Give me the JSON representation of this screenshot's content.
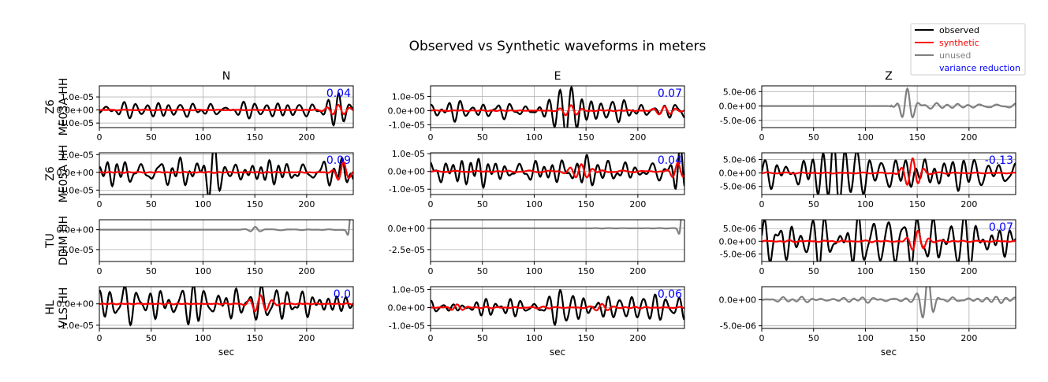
{
  "title": "Observed vs Synthetic waveforms in meters",
  "columns": [
    "N",
    "E",
    "Z"
  ],
  "xlabel": "sec",
  "legend": {
    "placement": "top-right",
    "entries": [
      {
        "label": "observed",
        "color": "#000000",
        "kind": "line"
      },
      {
        "label": "synthetic",
        "color": "#ff0000",
        "kind": "line"
      },
      {
        "label": "unused",
        "color": "#808080",
        "kind": "line"
      },
      {
        "label": "variance reduction",
        "color": "#0000ff",
        "kind": "text"
      }
    ]
  },
  "colors": {
    "observed": "#000000",
    "synthetic": "#ff0000",
    "unused": "#808080",
    "vr": "#0000ff",
    "grid": "#b0b0b0"
  },
  "chart_data": {
    "type": "line",
    "xlim": [
      0,
      245
    ],
    "xticks": [
      0,
      50,
      100,
      150,
      200
    ],
    "xtick_labels": [
      "0",
      "50",
      "100",
      "150",
      "200"
    ],
    "rows": [
      {
        "label": [
          "Z6",
          "ME03A HH"
        ],
        "panels": [
          {
            "used": true,
            "vr": "0.04",
            "ylim": [
              -1.35e-05,
              1.85e-05
            ],
            "yticks": [
              1e-05,
              0,
              -1e-05
            ],
            "ytick_labels": [
              "1.0e-05",
              "0.0e+00",
              "-1.0e-05"
            ],
            "obs": {
              "seed": 11,
              "amp": 5e-06,
              "start": 0,
              "burst": [
                [
                  230,
                  10,
                  1.4e-05
                ]
              ]
            },
            "syn": {
              "seed": 12,
              "amp": 2e-07,
              "start": 0,
              "burst": [
                [
                  230,
                  12,
                  4e-06
                ]
              ]
            }
          },
          {
            "used": true,
            "vr": "0.07",
            "ylim": [
              -1.2e-05,
              1.75e-05
            ],
            "yticks": [
              1e-05,
              0,
              -1e-05
            ],
            "ytick_labels": [
              "1.0e-05",
              "0.0e+00",
              "-1.0e-05"
            ],
            "obs": {
              "seed": 21,
              "amp": 6e-06,
              "start": 0,
              "burst": [
                [
                  135,
                  12,
                  1.5e-05
                ]
              ]
            },
            "syn": {
              "seed": 22,
              "amp": 3e-07,
              "start": 0,
              "burst": [
                [
                  135,
                  10,
                  4e-06
                ],
                [
                  225,
                  12,
                  3e-06
                ]
              ]
            }
          },
          {
            "used": false,
            "vr": "",
            "ylim": [
              -7.5e-06,
              7e-06
            ],
            "yticks": [
              5e-06,
              0,
              -5e-06
            ],
            "ytick_labels": [
              "5.0e-06",
              "0.0e+00",
              "-5.0e-06"
            ],
            "obs": {
              "seed": 31,
              "amp": 6e-07,
              "start": 125,
              "burst": [
                [
                  140,
                  8,
                  6.5e-06
                ]
              ]
            }
          }
        ]
      },
      {
        "label": [
          "Z6",
          "ME05A HH"
        ],
        "panels": [
          {
            "used": true,
            "vr": "0.09",
            "ylim": [
              -1.25e-05,
              1.1e-05
            ],
            "yticks": [
              1e-05,
              0,
              -1e-05
            ],
            "ytick_labels": [
              "1.0e-05",
              "0.0e+00",
              "-1.0e-05"
            ],
            "obs": {
              "seed": 41,
              "amp": 5.5e-06,
              "start": 0,
              "burst": [
                [
                  110,
                  12,
                  1.1e-05
                ]
              ]
            },
            "syn": {
              "seed": 42,
              "amp": 2e-07,
              "start": 0,
              "burst": [
                [
                  235,
                  8,
                  6e-06
                ]
              ]
            }
          },
          {
            "used": true,
            "vr": "0.04",
            "ylim": [
              -1.3e-05,
              1.05e-05
            ],
            "yticks": [
              1e-05,
              0,
              -1e-05
            ],
            "ytick_labels": [
              "1.0e-05",
              "0.0e+00",
              "-1.0e-05"
            ],
            "obs": {
              "seed": 51,
              "amp": 5e-06,
              "start": 0,
              "burst": [
                [
                  150,
                  12,
                  1e-05
                ],
                [
                  240,
                  6,
                  1.2e-05
                ]
              ]
            },
            "syn": {
              "seed": 52,
              "amp": 3e-07,
              "start": 0,
              "burst": [
                [
                  145,
                  12,
                  4e-06
                ],
                [
                  238,
                  8,
                  5e-06
                ]
              ]
            }
          },
          {
            "used": true,
            "vr": "-0.13",
            "ylim": [
              -8e-06,
              7.5e-06
            ],
            "yticks": [
              5e-06,
              0,
              -5e-06
            ],
            "ytick_labels": [
              "5.0e-06",
              "0.0e+00",
              "-5.0e-06"
            ],
            "obs": {
              "seed": 61,
              "amp": 4e-06,
              "start": 0,
              "burst": [
                [
                  80,
                  30,
                  7.5e-06
                ]
              ]
            },
            "syn": {
              "seed": 62,
              "amp": 2e-07,
              "start": 0,
              "burst": [
                [
                  145,
                  10,
                  5.5e-06
                ]
              ]
            }
          }
        ]
      },
      {
        "label": [
          "TU",
          "DDIM HH"
        ],
        "panels": [
          {
            "used": false,
            "vr": "",
            "ylim": [
              -1.6e-05,
              5e-06
            ],
            "yticks": [
              0,
              -1e-05
            ],
            "ytick_labels": [
              "0.0e+00",
              "-1.0e-05"
            ],
            "obs": {
              "seed": 71,
              "amp": 2e-07,
              "start": 135,
              "burst": [
                [
                  150,
                  6,
                  1.5e-06
                ],
                [
                  243,
                  3,
                  1.5e-05
                ]
              ]
            }
          },
          {
            "used": false,
            "vr": "",
            "ylim": [
              -3.9e-05,
              1e-05
            ],
            "yticks": [
              0,
              -2.5e-05
            ],
            "ytick_labels": [
              "0.0e+00",
              "-2.5e-05"
            ],
            "obs": {
              "seed": 81,
              "amp": 2e-07,
              "start": 140,
              "burst": [
                [
                  243,
                  3,
                  3.5e-05
                ]
              ]
            }
          },
          {
            "used": true,
            "vr": "0.07",
            "ylim": [
              -8e-06,
              8.5e-06
            ],
            "yticks": [
              5e-06,
              0,
              -5e-06
            ],
            "ytick_labels": [
              "5.0e-06",
              "0.0e+00",
              "-5.0e-06"
            ],
            "obs": {
              "seed": 91,
              "amp": 5e-06,
              "start": 0,
              "burst": [
                [
                  60,
                  30,
                  7e-06
                ],
                [
                  195,
                  20,
                  7e-06
                ]
              ]
            },
            "syn": {
              "seed": 92,
              "amp": 3e-07,
              "start": 0,
              "burst": [
                [
                  150,
                  10,
                  4e-06
                ]
              ]
            }
          }
        ]
      },
      {
        "label": [
          "HL",
          "VLS HH"
        ],
        "panels": [
          {
            "used": true,
            "vr": "0.0",
            "ylim": [
              -1.15e-05,
              8e-06
            ],
            "yticks": [
              0,
              -1e-05
            ],
            "ytick_labels": [
              "0.0e+00",
              "-1.0e-05"
            ],
            "obs": {
              "seed": 101,
              "amp": 5.5e-06,
              "start": 0,
              "burst": [
                [
                  90,
                  30,
                  8e-06
                ]
              ]
            },
            "syn": {
              "seed": 102,
              "amp": 2e-07,
              "start": 0,
              "burst": [
                [
                  155,
                  12,
                  4e-06
                ]
              ]
            }
          },
          {
            "used": true,
            "vr": "0.06",
            "ylim": [
              -1.15e-05,
              1.15e-05
            ],
            "yticks": [
              1e-05,
              0,
              -1e-05
            ],
            "ytick_labels": [
              "1.0e-05",
              "0.0e+00",
              "-1.0e-05"
            ],
            "obs": {
              "seed": 111,
              "amp": 4.5e-06,
              "start": 0,
              "burst": [
                [
                  125,
                  15,
                  1e-05
                ]
              ]
            },
            "syn": {
              "seed": 112,
              "amp": 3e-07,
              "start": 0,
              "burst": [
                [
                  25,
                  10,
                  2e-06
                ],
                [
                  165,
                  10,
                  2e-06
                ]
              ]
            }
          },
          {
            "used": false,
            "vr": "",
            "ylim": [
              -5.5e-06,
              2.5e-06
            ],
            "yticks": [
              0,
              -5e-06
            ],
            "ytick_labels": [
              "0.0e+00",
              "-5.0e-06"
            ],
            "obs": {
              "seed": 121,
              "amp": 4e-07,
              "start": 0,
              "burst": [
                [
                  160,
                  8,
                  5e-06
                ]
              ]
            }
          }
        ]
      }
    ]
  }
}
